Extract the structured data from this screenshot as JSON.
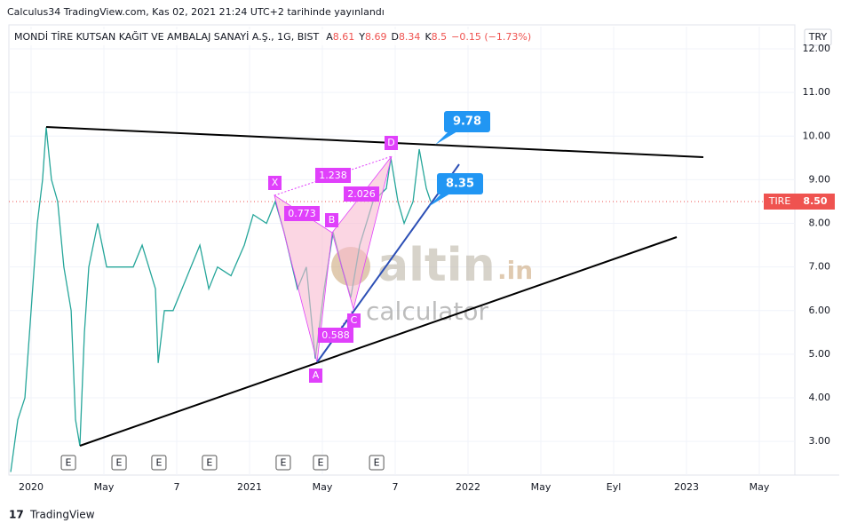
{
  "header": {
    "published": "Calculus34 TradingView.com, Kas 02, 2021 21:24 UTC+2 tarihinde yayınlandı"
  },
  "footer": {
    "brand": "TradingView"
  },
  "chart_data": {
    "type": "line",
    "title": "MONDİ TİRE KUTSAN KAĞIT VE AMBALAJ SANAYİ A.Ş., 1G, BIST",
    "ohlc": [
      {
        "label": "A",
        "value": 8.61
      },
      {
        "label": "Y",
        "value": 8.69
      },
      {
        "label": "D",
        "value": 8.34
      },
      {
        "label": "K",
        "value": 8.5
      }
    ],
    "change": "−0.15 (−1.73%)",
    "currency": "TRY",
    "symbol": "TIRE",
    "last_price": {
      "value": 8.5,
      "label": "8.50"
    },
    "color": "#26a69a",
    "x": [
      -1.12,
      -0.73,
      -0.34,
      0,
      0.34,
      0.63,
      0.83,
      1.12,
      1.46,
      1.8,
      2.2,
      2.44,
      2.68,
      2.93,
      3.17,
      3.66,
      4.15,
      4.88,
      5.61,
      6.1,
      6.83,
      6.98,
      7.32,
      7.8,
      8.29,
      8.78,
      9.27,
      9.76,
      10.24,
      10.98,
      11.71,
      12.2,
      12.93,
      13.41,
      13.9,
      14.63,
      15.12,
      15.61,
      16.1,
      16.59,
      17.07,
      17.56,
      18.05,
      18.78,
      19.51,
      19.76,
      20.15,
      20.49,
      20.98,
      21.32,
      21.71,
      21.95
    ],
    "values": [
      2.3,
      3.5,
      4.0,
      6.0,
      8.0,
      9.0,
      10.2,
      9.0,
      8.5,
      7.0,
      6.0,
      3.5,
      2.9,
      5.5,
      7.0,
      8.0,
      7.0,
      7.0,
      7.0,
      7.5,
      6.5,
      4.8,
      6.0,
      6.0,
      6.5,
      7.0,
      7.5,
      6.5,
      7.0,
      6.8,
      7.5,
      8.2,
      8.0,
      8.5,
      7.8,
      6.5,
      7.0,
      4.9,
      6.5,
      7.8,
      7.0,
      6.3,
      7.5,
      8.5,
      8.8,
      9.5,
      8.5,
      8.0,
      8.5,
      9.7,
      8.8,
      8.5
    ],
    "xlim": [
      -1.22,
      41.95
    ],
    "ylim": [
      2.23,
      12.51
    ],
    "xticks": [
      {
        "value": 0,
        "label": "2020"
      },
      {
        "value": 4,
        "label": "May"
      },
      {
        "value": 8,
        "label": "7"
      },
      {
        "value": 12,
        "label": "2021"
      },
      {
        "value": 16,
        "label": "May"
      },
      {
        "value": 20,
        "label": "7"
      },
      {
        "value": 24,
        "label": "2022"
      },
      {
        "value": 28,
        "label": "May"
      },
      {
        "value": 32,
        "label": "Eyl"
      },
      {
        "value": 36,
        "label": "2023"
      },
      {
        "value": 40,
        "label": "May"
      }
    ],
    "yticks": [
      {
        "value": 3,
        "label": "3.00"
      },
      {
        "value": 4,
        "label": "4.00"
      },
      {
        "value": 5,
        "label": "5.00"
      },
      {
        "value": 6,
        "label": "6.00"
      },
      {
        "value": 7,
        "label": "7.00"
      },
      {
        "value": 8,
        "label": "8.00"
      },
      {
        "value": 9,
        "label": "9.00"
      },
      {
        "value": 10,
        "label": "10.00"
      },
      {
        "value": 11,
        "label": "11.00"
      },
      {
        "value": 12,
        "label": "12.00"
      }
    ],
    "grid": true,
    "earnings": [
      {
        "x": 2.05,
        "label": "E"
      },
      {
        "x": 4.83,
        "label": "E"
      },
      {
        "x": 7.02,
        "label": "E"
      },
      {
        "x": 9.8,
        "label": "E"
      },
      {
        "x": 13.85,
        "label": "E"
      },
      {
        "x": 15.9,
        "label": "E"
      },
      {
        "x": 18.98,
        "label": "E"
      }
    ],
    "pattern": {
      "points": [
        "X",
        "A",
        "B",
        "C",
        "D"
      ],
      "ratios": [
        "1.238",
        "0.773",
        "2.026",
        "0.588"
      ]
    },
    "targets": [
      "9.78",
      "8.35"
    ],
    "watermark": [
      "altin",
      ".in",
      "calculator"
    ]
  }
}
